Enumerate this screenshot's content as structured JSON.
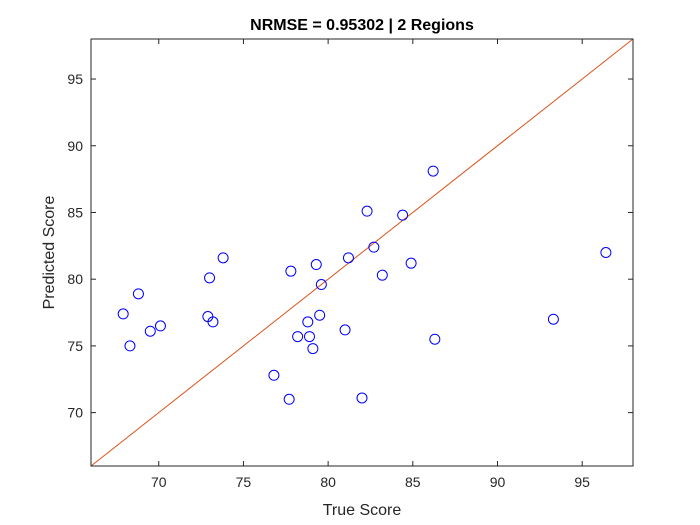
{
  "chart_data": {
    "type": "scatter",
    "title": "NRMSE = 0.95302 | 2 Regions",
    "xlabel": "True Score",
    "ylabel": "Predicted Score",
    "xlim": [
      66,
      98
    ],
    "ylim": [
      66,
      98
    ],
    "xticks": [
      70,
      75,
      80,
      85,
      90,
      95
    ],
    "yticks": [
      70,
      75,
      80,
      85,
      90,
      95
    ],
    "grid": false,
    "marker_color": "#0000ff",
    "line_color": "#d95319",
    "axis_color": "#262626",
    "reference_line": {
      "x": [
        66,
        98
      ],
      "y": [
        66,
        98
      ]
    },
    "points": [
      {
        "x": 67.9,
        "y": 77.4
      },
      {
        "x": 68.3,
        "y": 75.0
      },
      {
        "x": 68.8,
        "y": 78.9
      },
      {
        "x": 69.5,
        "y": 76.1
      },
      {
        "x": 70.1,
        "y": 76.5
      },
      {
        "x": 72.9,
        "y": 77.2
      },
      {
        "x": 73.0,
        "y": 80.1
      },
      {
        "x": 73.2,
        "y": 76.8
      },
      {
        "x": 73.8,
        "y": 81.6
      },
      {
        "x": 76.8,
        "y": 72.8
      },
      {
        "x": 77.7,
        "y": 71.0
      },
      {
        "x": 77.8,
        "y": 80.6
      },
      {
        "x": 78.2,
        "y": 75.7
      },
      {
        "x": 78.8,
        "y": 76.8
      },
      {
        "x": 78.9,
        "y": 75.7
      },
      {
        "x": 79.1,
        "y": 74.8
      },
      {
        "x": 79.3,
        "y": 81.1
      },
      {
        "x": 79.5,
        "y": 77.3
      },
      {
        "x": 79.6,
        "y": 79.6
      },
      {
        "x": 81.0,
        "y": 76.2
      },
      {
        "x": 81.2,
        "y": 81.6
      },
      {
        "x": 82.0,
        "y": 71.1
      },
      {
        "x": 82.3,
        "y": 85.1
      },
      {
        "x": 82.7,
        "y": 82.4
      },
      {
        "x": 83.2,
        "y": 80.3
      },
      {
        "x": 84.4,
        "y": 84.8
      },
      {
        "x": 84.9,
        "y": 81.2
      },
      {
        "x": 86.2,
        "y": 88.1
      },
      {
        "x": 86.3,
        "y": 75.5
      },
      {
        "x": 93.3,
        "y": 77.0
      },
      {
        "x": 96.4,
        "y": 82.0
      }
    ]
  }
}
